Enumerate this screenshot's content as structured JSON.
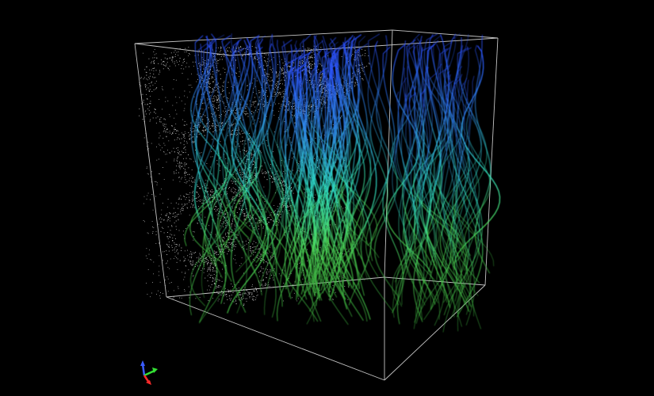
{
  "scene": {
    "background_color": "#000000",
    "subject": "3d-streamline-volume-render",
    "bounding_box_color": "#e6e6e6",
    "point_cloud_color": "#f2f2f2",
    "streamline_colors": {
      "top": "#2a4dff",
      "upper_middle": "#2f8cf0",
      "middle": "#2fe0c8",
      "lower": "#4fe05a",
      "bottom": "#3aa83a"
    }
  },
  "axes_gizmo": {
    "x_axis_color": "#ff2a2a",
    "y_axis_color": "#34e034",
    "z_axis_color": "#3a5cff",
    "icon": "xyz-axes-icon"
  }
}
